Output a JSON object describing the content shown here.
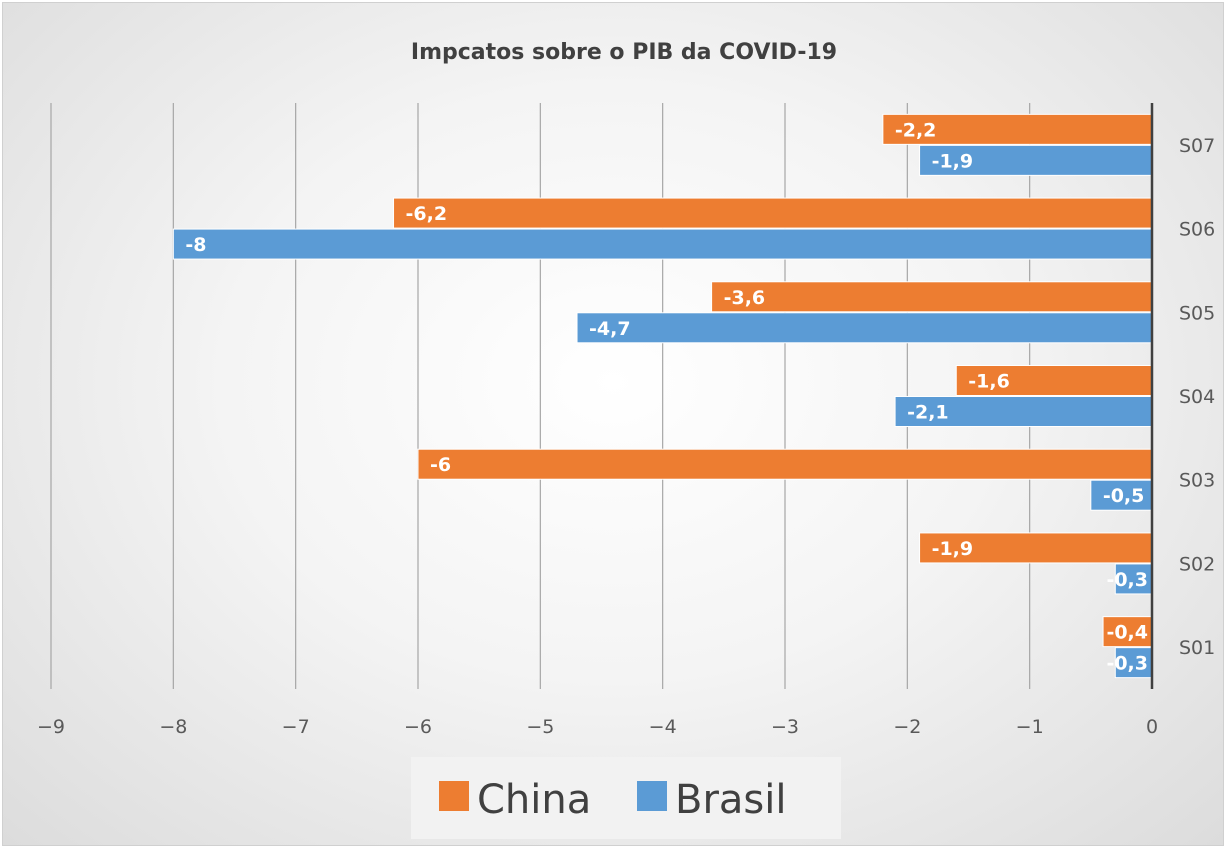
{
  "chart_data": {
    "type": "bar",
    "orientation": "horizontal",
    "title": "Impcatos sobre o PIB da COVID-19",
    "categories": [
      "S01",
      "S02",
      "S03",
      "S04",
      "S05",
      "S06",
      "S07"
    ],
    "series": [
      {
        "name": "China",
        "color": "#ED7D31",
        "values": [
          -0.4,
          -1.9,
          -6,
          -1.6,
          -3.6,
          -6.2,
          -2.2
        ],
        "labels": [
          "-0,4",
          "-1,9",
          "-6",
          "-1,6",
          "-3,6",
          "-6,2",
          "-2,2"
        ]
      },
      {
        "name": "Brasil",
        "color": "#5B9BD5",
        "values": [
          -0.3,
          -0.3,
          -0.5,
          -2.1,
          -4.7,
          -8,
          -1.9
        ],
        "labels": [
          "-0,3",
          "-0,3",
          "-0,5",
          "-2,1",
          "-4,7",
          "-8",
          "-1,9"
        ]
      }
    ],
    "xlim": [
      -9,
      0
    ],
    "xticks": [
      -9,
      -8,
      -7,
      -6,
      -5,
      -4,
      -3,
      -2,
      -1,
      0
    ],
    "xlabel": "",
    "ylabel": "",
    "grid": "vertical",
    "legend": "bottom"
  }
}
